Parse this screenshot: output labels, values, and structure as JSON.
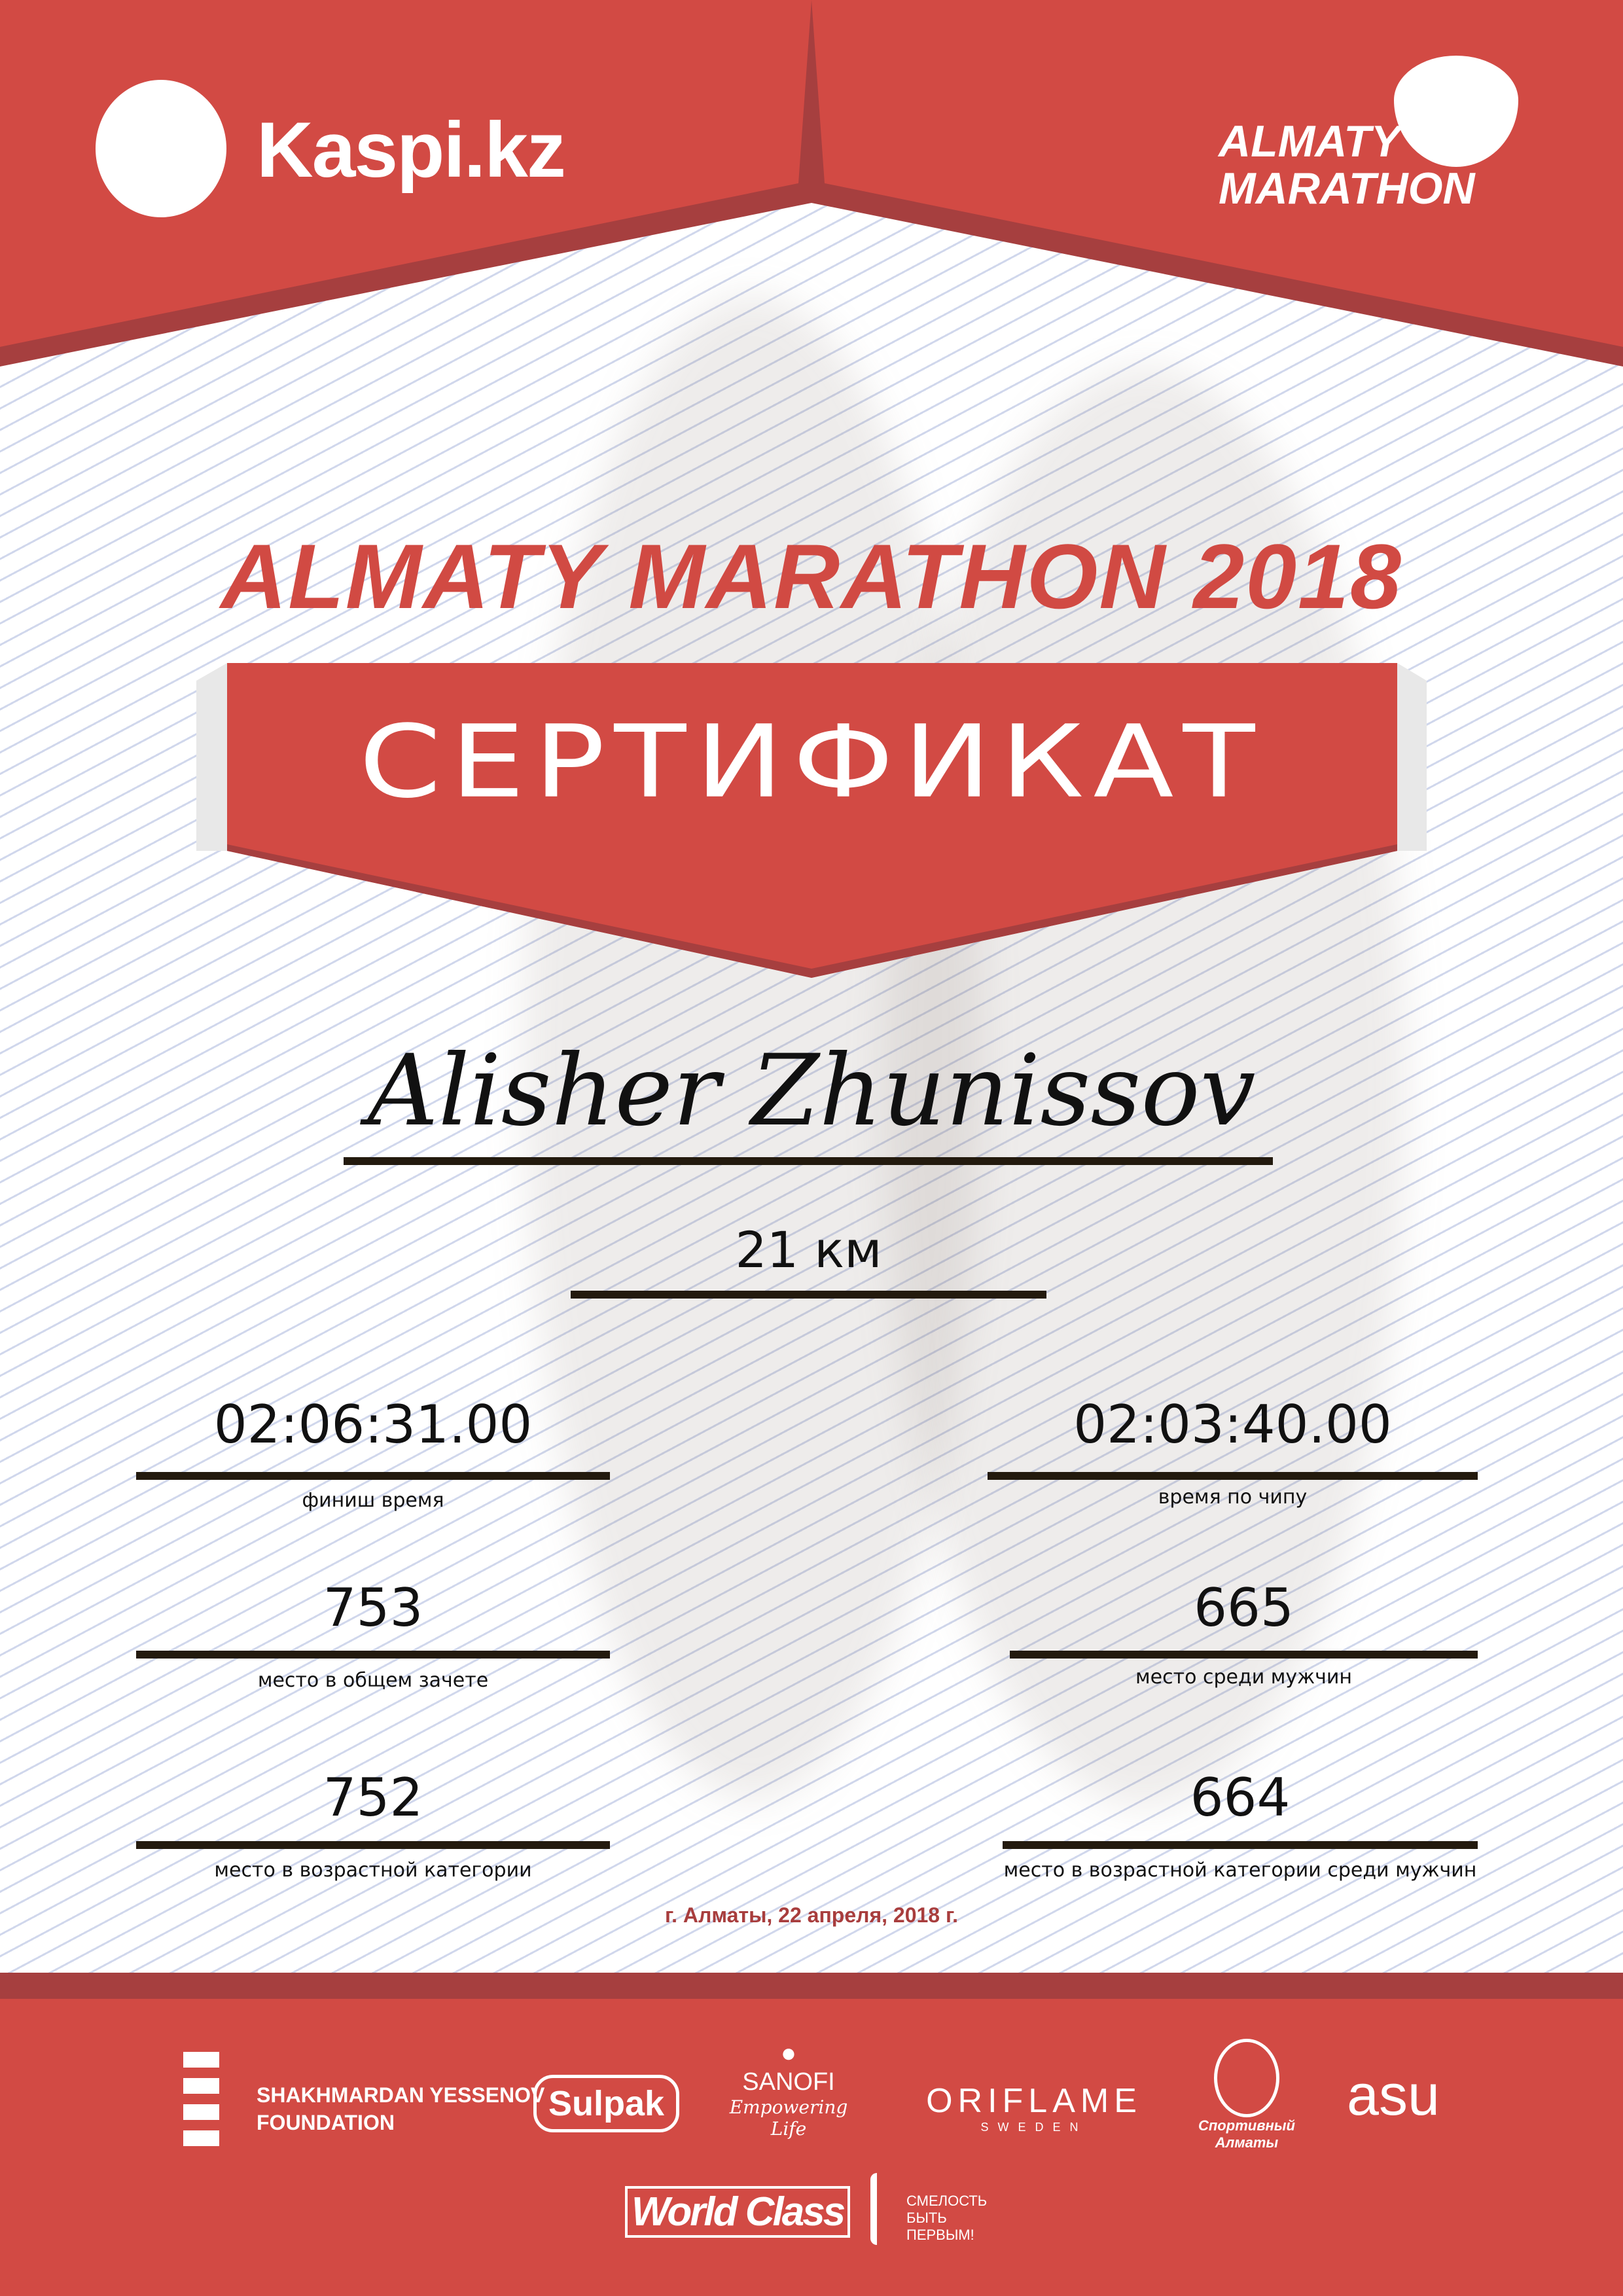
{
  "header": {
    "left_logo": "Kaspi.kz",
    "right_logo_line1": "ALMATY",
    "right_logo_line2": "MARATHON"
  },
  "colors": {
    "primary_red": "#d24a44",
    "dark_red": "#a63f3f",
    "text": "#111111"
  },
  "title": "ALMATY MARATHON 2018",
  "certificate_label": "СЕРТИФИКАТ",
  "participant_name": "Alisher Zhunissov",
  "distance": "21 км",
  "results": {
    "finish_time": {
      "value": "02:06:31.00",
      "label": "финиш время"
    },
    "chip_time": {
      "value": "02:03:40.00",
      "label": "время по чипу"
    },
    "overall_place": {
      "value": "753",
      "label": "место в общем зачете"
    },
    "men_place": {
      "value": "665",
      "label": "место среди мужчин"
    },
    "age_place": {
      "value": "752",
      "label": "место в возрастной категории"
    },
    "age_men_place": {
      "value": "664",
      "label": "место в возрастной категории среди мужчин"
    }
  },
  "date_line": "г. Алматы, 22 апреля, 2018 г.",
  "sponsors": {
    "yessenov_1": "SHAKHMARDAN YESSENOV",
    "yessenov_2": "FOUNDATION",
    "sulpak": "Sulpak",
    "sanofi": "SANOFI",
    "sanofi_tag": "Empowering Life",
    "oriflame": "ORIFLAME",
    "oriflame_sub": "SWEDEN",
    "sport_almaty": "Спортивный Алматы",
    "asu": "asu",
    "worldclass": "World Class",
    "smelost_1": "СМЕЛОСТЬ",
    "smelost_2": "БЫТЬ",
    "smelost_3": "ПЕРВЫМ!"
  }
}
